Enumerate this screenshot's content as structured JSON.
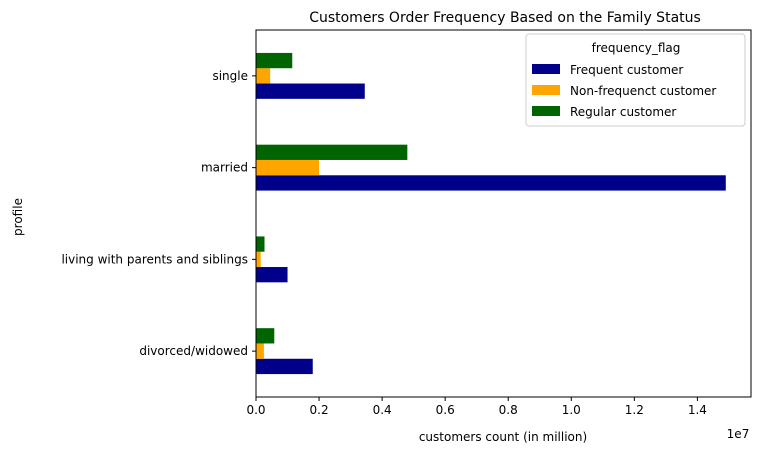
{
  "chart_data": {
    "type": "bar",
    "orientation": "horizontal",
    "title": "Customers Order Frequency Based on the Family Status",
    "xlabel": "customers count (in million)",
    "ylabel": "profile",
    "x_offset_label": "1e7",
    "xlim": [
      0,
      15700000
    ],
    "x_ticks": [
      0,
      2000000,
      4000000,
      6000000,
      8000000,
      10000000,
      12000000,
      14000000
    ],
    "x_tick_labels": [
      "0.0",
      "0.2",
      "0.4",
      "0.6",
      "0.8",
      "1.0",
      "1.2",
      "1.4"
    ],
    "categories": [
      "divorced/widowed",
      "living with parents and siblings",
      "married",
      "single"
    ],
    "series": [
      {
        "name": "Frequent customer",
        "color": "#00008b",
        "values": [
          1800000,
          1000000,
          14900000,
          3450000
        ]
      },
      {
        "name": "Non-frequenct customer",
        "color": "#ffa500",
        "values": [
          250000,
          150000,
          2000000,
          450000
        ]
      },
      {
        "name": "Regular customer",
        "color": "#006400",
        "values": [
          580000,
          270000,
          4800000,
          1150000
        ]
      }
    ],
    "legend": {
      "title": "frequency_flag",
      "position": "upper right"
    },
    "grid": false
  }
}
